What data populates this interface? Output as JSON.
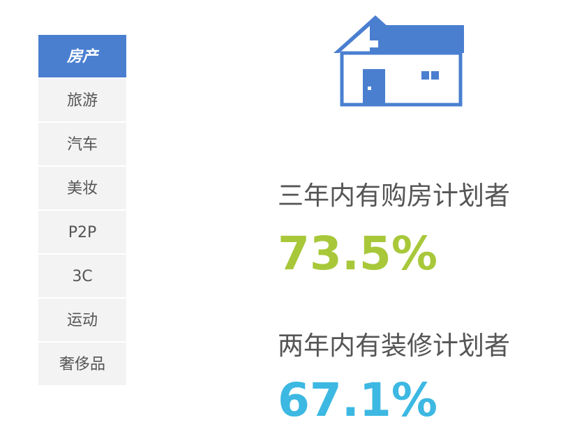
{
  "menu": {
    "items": [
      "房产",
      "旅游",
      "汽车",
      "美妆",
      "P2P",
      "3C",
      "运动",
      "奢侈品"
    ],
    "active": 0
  },
  "stats": [
    {
      "label": "三年内有购房计划者",
      "value": "73.5%",
      "color": "#a8c83a"
    },
    {
      "label": "两年内有装修计划者",
      "value": "67.1%",
      "color": "#3cb8e2"
    }
  ]
}
